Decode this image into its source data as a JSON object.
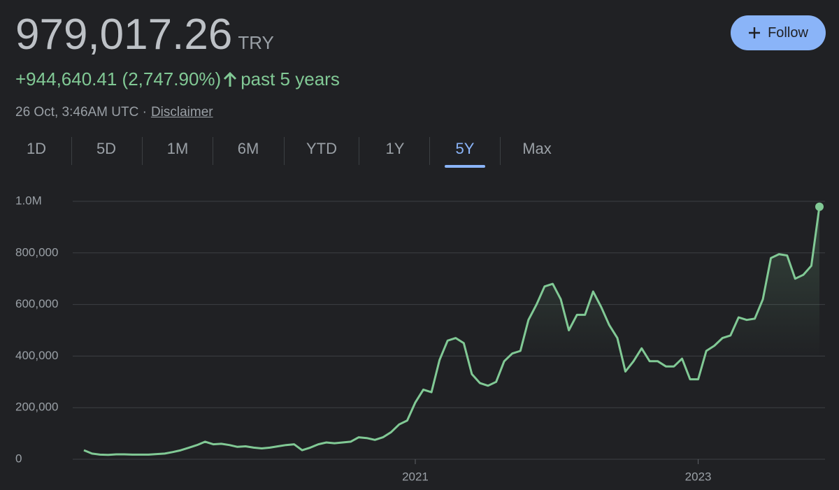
{
  "header": {
    "price": "979,017.26",
    "currency": "TRY",
    "change": "+944,640.41 (2,747.90%)",
    "period": "past 5 years",
    "timestamp": "26 Oct, 3:46AM UTC ·",
    "disclaimer": "Disclaimer"
  },
  "follow_button": "Follow",
  "tabs": [
    "1D",
    "5D",
    "1M",
    "6M",
    "YTD",
    "1Y",
    "5Y",
    "Max"
  ],
  "selected_tab": 6,
  "chart_data": {
    "type": "line",
    "categories": [
      null,
      null,
      null,
      null,
      null,
      null,
      null,
      null,
      null,
      null,
      null,
      null,
      null,
      null,
      null,
      null,
      null,
      null,
      null,
      null,
      null,
      null,
      null,
      null,
      null,
      null,
      null,
      null,
      null,
      null,
      null,
      null,
      null,
      null,
      null,
      null,
      null,
      null,
      null,
      null,
      null,
      "2021",
      null,
      null,
      null,
      null,
      null,
      null,
      null,
      null,
      null,
      null,
      null,
      null,
      null,
      null,
      null,
      null,
      null,
      null,
      null,
      null,
      null,
      null,
      null,
      null,
      null,
      null,
      null,
      null,
      null,
      null,
      null,
      null,
      null,
      null,
      "2023",
      null,
      null,
      null,
      null,
      null,
      null,
      null,
      null,
      null,
      null,
      null,
      null,
      null,
      null,
      null
    ],
    "series": [
      {
        "color": "#81c995",
        "values": [
          35000,
          22000,
          18000,
          17000,
          19000,
          19000,
          18000,
          18000,
          18000,
          20000,
          22000,
          28000,
          35000,
          45000,
          55000,
          68000,
          58000,
          60000,
          55000,
          48000,
          50000,
          45000,
          42000,
          45000,
          50000,
          55000,
          58000,
          35000,
          45000,
          58000,
          65000,
          62000,
          65000,
          68000,
          85000,
          82000,
          75000,
          85000,
          105000,
          135000,
          150000,
          220000,
          270000,
          260000,
          385000,
          460000,
          470000,
          450000,
          330000,
          295000,
          285000,
          300000,
          380000,
          410000,
          420000,
          540000,
          600000,
          670000,
          680000,
          620000,
          500000,
          560000,
          560000,
          650000,
          590000,
          520000,
          470000,
          340000,
          380000,
          430000,
          380000,
          380000,
          360000,
          360000,
          390000,
          310000,
          310000,
          420000,
          440000,
          470000,
          480000,
          550000,
          540000,
          545000,
          620000,
          780000,
          795000,
          790000,
          700000,
          715000,
          750000,
          979017.26
        ]
      }
    ],
    "ylim": [
      0,
      1000000
    ],
    "yticks": [
      0,
      {
        "value": 200000,
        "label": "200,000"
      },
      {
        "value": 400000,
        "label": "400,000"
      },
      {
        "value": 600000,
        "label": "600,000"
      },
      {
        "value": 800000,
        "label": "800,000"
      },
      {
        "value": 1000000,
        "label": "1.0M"
      }
    ],
    "grid": true
  }
}
